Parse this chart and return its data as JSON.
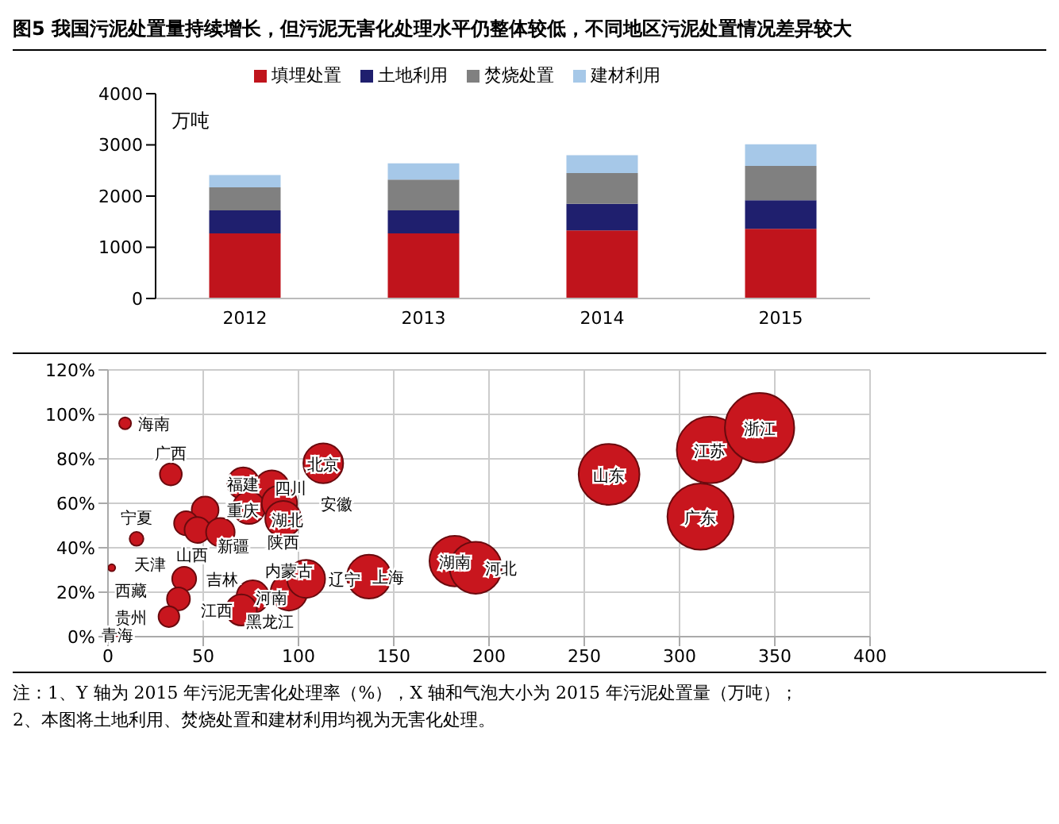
{
  "chart_data": [
    {
      "type": "bar",
      "title": "图5  我国污泥处置量持续增长，但污泥无害化处理水平仍整体较低，不同地区污泥处置情况差异较大",
      "ylabel": "万吨",
      "categories": [
        "2012",
        "2013",
        "2014",
        "2015"
      ],
      "stacked": true,
      "legend": "top",
      "grid": false,
      "ylim": [
        0,
        4000
      ],
      "yticks": [
        0,
        1000,
        2000,
        3000,
        4000
      ],
      "series": [
        {
          "name": "填埋处置",
          "color": "#c0141c",
          "values": [
            1270,
            1270,
            1330,
            1360
          ]
        },
        {
          "name": "土地利用",
          "color": "#1f1f6e",
          "values": [
            450,
            450,
            520,
            560
          ]
        },
        {
          "name": "焚烧处置",
          "color": "#808080",
          "values": [
            450,
            600,
            600,
            670
          ]
        },
        {
          "name": "建材利用",
          "color": "#a6c8e8",
          "values": [
            240,
            320,
            350,
            420
          ]
        }
      ]
    },
    {
      "type": "bubble",
      "grid": true,
      "legend": false,
      "xlim": [
        0,
        400
      ],
      "xticks": [
        0,
        50,
        100,
        150,
        200,
        250,
        300,
        350,
        400
      ],
      "ylim": [
        0,
        120
      ],
      "yticks": [
        {
          "value": 0,
          "label": "0%"
        },
        {
          "value": 20,
          "label": "20%"
        },
        {
          "value": 40,
          "label": "40%"
        },
        {
          "value": 60,
          "label": "60%"
        },
        {
          "value": 80,
          "label": "80%"
        },
        {
          "value": 100,
          "label": "100%"
        },
        {
          "value": 120,
          "label": "120%"
        }
      ],
      "series": [
        {
          "color": "#c8161e",
          "x": [
            9,
            33,
            15,
            71,
            86,
            51,
            74,
            90,
            92,
            41,
            47,
            59,
            113,
            2,
            40,
            37,
            32,
            76,
            70,
            95,
            5,
            104,
            137,
            182,
            193,
            263,
            316,
            342,
            311
          ],
          "values": [
            96,
            73,
            44,
            69,
            67,
            57,
            58,
            60,
            53,
            51,
            48,
            47,
            78,
            31,
            26,
            17,
            9,
            18,
            12,
            20,
            1,
            26,
            27,
            34,
            31,
            73,
            84,
            94,
            54
          ],
          "sizes": [
            0.03,
            0.1,
            0.04,
            0.21,
            0.25,
            0.15,
            0.22,
            0.26,
            0.27,
            0.12,
            0.14,
            0.17,
            0.33,
            0.01,
            0.12,
            0.11,
            0.09,
            0.22,
            0.2,
            0.28,
            0.01,
            0.3,
            0.4,
            0.53,
            0.56,
            0.77,
            0.92,
            1,
            0.91
          ]
        }
      ],
      "annotations": [
        {
          "text": "海南",
          "x": 9,
          "y": 96
        },
        {
          "text": "广西",
          "x": 33,
          "y": 73
        },
        {
          "text": "宁夏",
          "x": 15,
          "y": 44
        },
        {
          "text": "福建",
          "x": 71,
          "y": 69
        },
        {
          "text": "四川",
          "x": 86,
          "y": 67
        },
        {
          "text": "重庆",
          "x": 51,
          "y": 57
        },
        {
          "text": "湖北",
          "x": 74,
          "y": 58
        },
        {
          "text": "安徽",
          "x": 90,
          "y": 60
        },
        {
          "text": "陕西",
          "x": 92,
          "y": 53
        },
        {
          "text": "新疆",
          "x": 41,
          "y": 51
        },
        {
          "text": "天津",
          "x": 47,
          "y": 48
        },
        {
          "text": "山西",
          "x": 59,
          "y": 47
        },
        {
          "text": "北京",
          "x": 113,
          "y": 78
        },
        {
          "text": "西藏",
          "x": 2,
          "y": 31
        },
        {
          "text": "吉林",
          "x": 40,
          "y": 26
        },
        {
          "text": "江西",
          "x": 37,
          "y": 17
        },
        {
          "text": "贵州",
          "x": 32,
          "y": 9
        },
        {
          "text": "河南",
          "x": 76,
          "y": 18
        },
        {
          "text": "黑龙江",
          "x": 70,
          "y": 12
        },
        {
          "text": "内蒙古",
          "x": 95,
          "y": 20
        },
        {
          "text": "青海",
          "x": 5,
          "y": 1
        },
        {
          "text": "辽宁",
          "x": 104,
          "y": 26
        },
        {
          "text": "上海",
          "x": 137,
          "y": 27
        },
        {
          "text": "湖南",
          "x": 182,
          "y": 34
        },
        {
          "text": "河北",
          "x": 193,
          "y": 31
        },
        {
          "text": "山东",
          "x": 263,
          "y": 73
        },
        {
          "text": "江苏",
          "x": 316,
          "y": 84
        },
        {
          "text": "浙江",
          "x": 342,
          "y": 94
        },
        {
          "text": "广东",
          "x": 311,
          "y": 54
        },
        "注：1、Y 轴为 2015 年污泥无害化处理率（%），X 轴和气泡大小为 2015 年污泥处置量（万吨）；",
        "2、本图将土地利用、焚烧处置和建材利用均视为无害化处理。"
      ]
    }
  ]
}
